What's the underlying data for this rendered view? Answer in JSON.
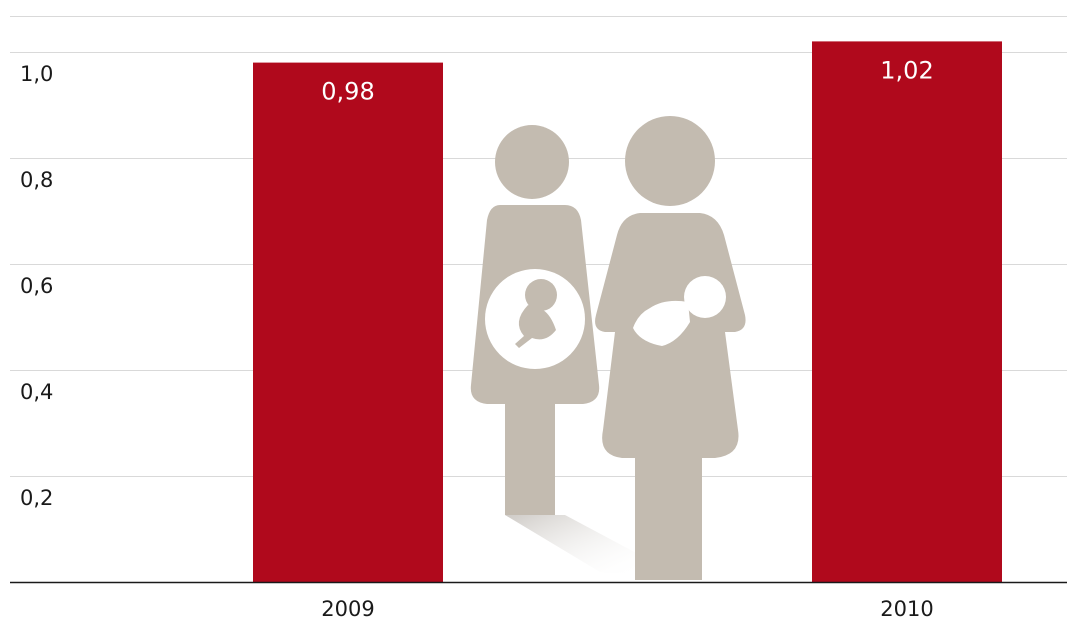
{
  "chart_data": {
    "type": "bar",
    "title": "",
    "xlabel": "",
    "ylabel": "",
    "categories": [
      "2009",
      "2010"
    ],
    "values": [
      0.98,
      1.02
    ],
    "data_labels": [
      "0,98",
      "1,02"
    ],
    "yticks": [
      {
        "value": 0.2,
        "label": "0,2"
      },
      {
        "value": 0.4,
        "label": "0,4"
      },
      {
        "value": 0.6,
        "label": "0,6"
      },
      {
        "value": 0.8,
        "label": "0,8"
      },
      {
        "value": 1.0,
        "label": "1,0"
      }
    ],
    "ylim": [
      0,
      1.08
    ],
    "grid": true,
    "legend": "none"
  },
  "colors": {
    "bar": "#b0091c",
    "grid": "#d9d9d9",
    "axis": "#1a1a1a",
    "illustration": "#c3bbb0"
  },
  "illustration": {
    "icons": [
      "pregnant-woman-icon",
      "mother-with-baby-icon"
    ]
  }
}
